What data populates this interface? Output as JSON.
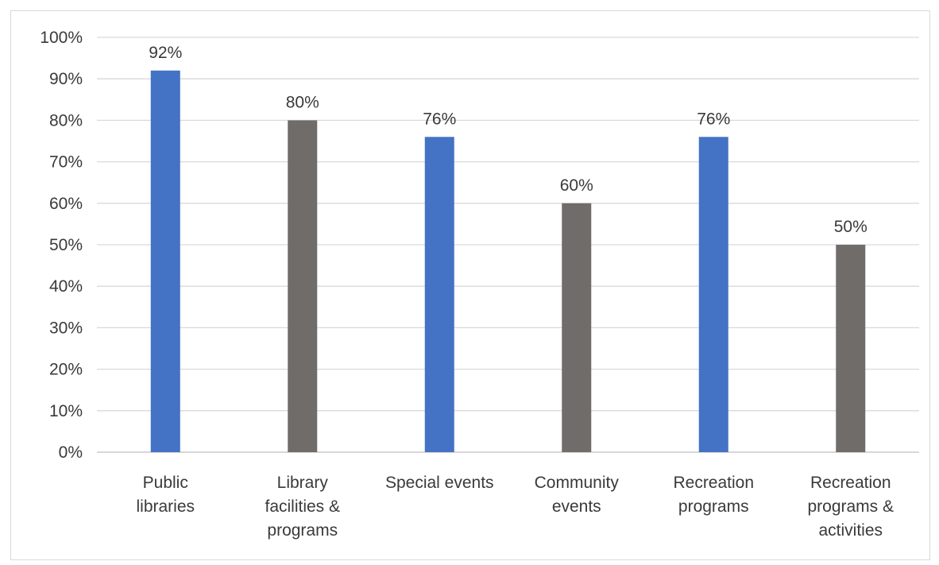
{
  "chart_data": {
    "type": "bar",
    "title": "",
    "xlabel": "",
    "ylabel": "",
    "categories": [
      [
        "Public",
        "libraries"
      ],
      [
        "Library",
        "facilities &",
        "programs"
      ],
      [
        "Special events"
      ],
      [
        "Community",
        "events"
      ],
      [
        "Recreation",
        "programs"
      ],
      [
        "Recreation",
        "programs &",
        "activities"
      ]
    ],
    "values": [
      92,
      80,
      76,
      60,
      76,
      50
    ],
    "data_labels": [
      "92%",
      "80%",
      "76%",
      "60%",
      "76%",
      "50%"
    ],
    "bar_colors": [
      "#4472c4",
      "#706c6a",
      "#4472c4",
      "#706c6a",
      "#4472c4",
      "#706c6a"
    ],
    "ylim": [
      0,
      100
    ],
    "y_ticks": [
      0,
      10,
      20,
      30,
      40,
      50,
      60,
      70,
      80,
      90,
      100
    ],
    "y_tick_labels": [
      "0%",
      "10%",
      "20%",
      "30%",
      "40%",
      "50%",
      "60%",
      "70%",
      "80%",
      "90%",
      "100%"
    ],
    "grid": true,
    "legend": "none",
    "colors": {
      "grid": "#d9d9d9",
      "axis": "#bfbfbf",
      "text": "#3a3a3a"
    }
  }
}
